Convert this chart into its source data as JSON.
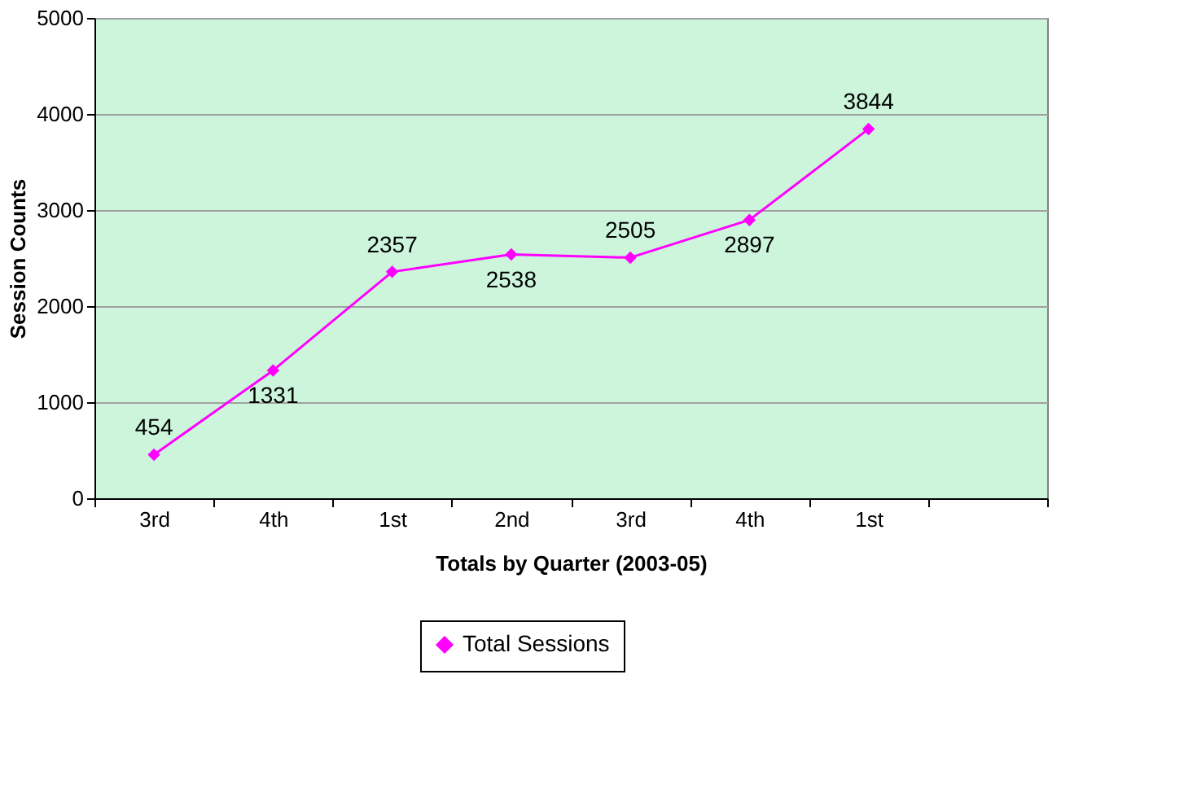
{
  "chart_data": {
    "type": "line",
    "xlabel": "Totals by Quarter (2003-05)",
    "ylabel": "Session Counts",
    "categories": [
      "3rd",
      "4th",
      "1st",
      "2nd",
      "3rd",
      "4th",
      "1st",
      null
    ],
    "series": [
      {
        "name": "Total Sessions",
        "color": "#ff00ff",
        "values": [
          454,
          1331,
          2357,
          2538,
          2505,
          2897,
          3844,
          null
        ]
      }
    ],
    "ylim": [
      0,
      5000
    ],
    "yticks": [
      0,
      1000,
      2000,
      3000,
      4000,
      5000
    ],
    "grid": "y",
    "legend": "bottom",
    "marker": "diamond",
    "line_style": "solid",
    "data_labels": true
  }
}
